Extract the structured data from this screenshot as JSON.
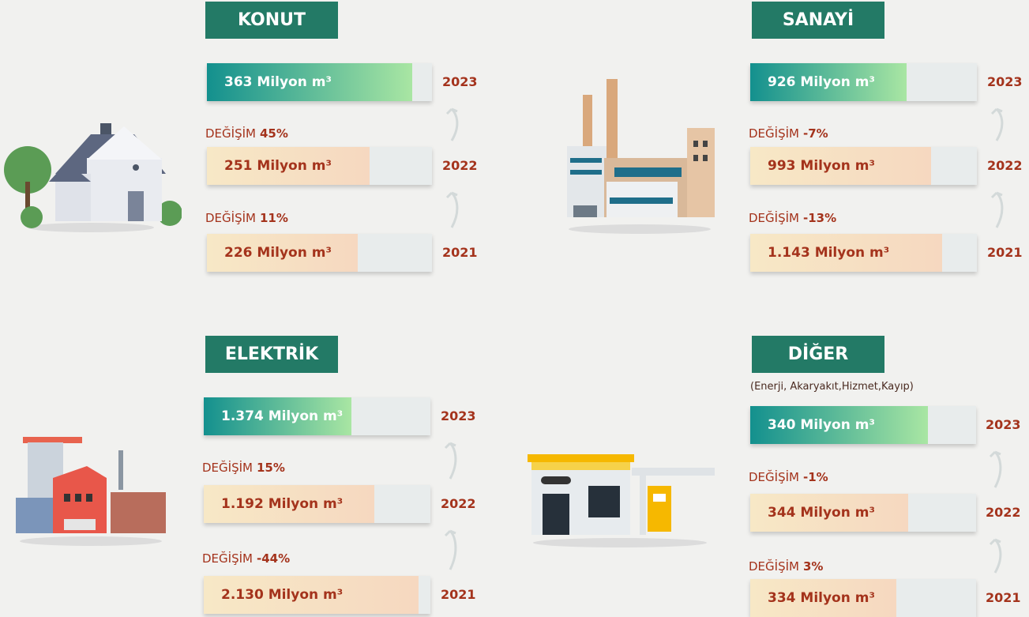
{
  "panels": [
    {
      "title": "KONUT",
      "rows": [
        {
          "amount": "363 Milyon m³",
          "year": "2023"
        },
        {
          "amount": "251 Milyon m³",
          "year": "2022"
        },
        {
          "amount": "226 Milyon m³",
          "year": "2021"
        }
      ],
      "changes": [
        {
          "label": "DEĞİŞİM",
          "value": "45%"
        },
        {
          "label": "DEĞİŞİM",
          "value": "11%"
        }
      ]
    },
    {
      "title": "SANAYİ",
      "rows": [
        {
          "amount": "926 Milyon m³",
          "year": "2023"
        },
        {
          "amount": "993 Milyon m³",
          "year": "2022"
        },
        {
          "amount": "1.143 Milyon m³",
          "year": "2021"
        }
      ],
      "changes": [
        {
          "label": "DEĞİŞİM",
          "value": "-7%"
        },
        {
          "label": "DEĞİŞİM",
          "value": "-13%"
        }
      ]
    },
    {
      "title": "ELEKTRİK",
      "rows": [
        {
          "amount": "1.374 Milyon m³",
          "year": "2023"
        },
        {
          "amount": "1.192 Milyon m³",
          "year": "2022"
        },
        {
          "amount": "2.130 Milyon m³",
          "year": "2021"
        }
      ],
      "changes": [
        {
          "label": "DEĞİŞİM",
          "value": "15%"
        },
        {
          "label": "DEĞİŞİM",
          "value": "-44%"
        }
      ]
    },
    {
      "title": "DİĞER",
      "note": "(Enerji, Akaryakıt,Hizmet,Kayıp)",
      "rows": [
        {
          "amount": "340 Milyon m³",
          "year": "2023"
        },
        {
          "amount": "344 Milyon m³",
          "year": "2022"
        },
        {
          "amount": "334 Milyon m³",
          "year": "2021"
        }
      ],
      "changes": [
        {
          "label": "DEĞİŞİM",
          "value": "-1%"
        },
        {
          "label": "DEĞİŞİM",
          "value": "3%"
        }
      ]
    }
  ]
}
